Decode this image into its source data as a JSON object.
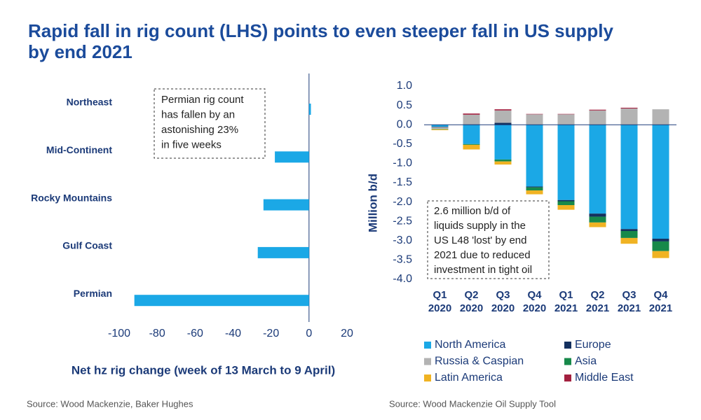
{
  "title": [
    "Rapid fall in rig count (LHS) points to even steeper fall in US supply",
    "by end 2021"
  ],
  "chart_data": [
    {
      "type": "hbar",
      "x_label": "Net hz rig change (week of 13 March to 9 April)",
      "categories": [
        "Northeast",
        "Mid-Continent",
        "Rocky Mountains",
        "Gulf Coast",
        "Permian"
      ],
      "values": [
        1,
        -18,
        -24,
        -27,
        -92
      ],
      "color": "#1ba8e6",
      "xlim": [
        -100,
        20
      ],
      "xticks": [
        -100,
        -80,
        -60,
        -40,
        -20,
        0,
        20
      ],
      "annotation": [
        "Permian rig count",
        "has fallen by an",
        "astonishing 23%",
        "in five weeks"
      ],
      "source": "Source: Wood Mackenzie, Baker Hughes"
    },
    {
      "type": "stacked_bar",
      "y_label": "Million b/d",
      "categories": [
        "Q1 2020",
        "Q2 2020",
        "Q3 2020",
        "Q4 2020",
        "Q1 2021",
        "Q2 2021",
        "Q3 2021",
        "Q4 2021"
      ],
      "series": [
        {
          "name": "North America",
          "color": "#1ba8e6",
          "values": [
            -0.05,
            -0.5,
            -0.9,
            -1.6,
            -1.95,
            -2.3,
            -2.7,
            -2.95
          ]
        },
        {
          "name": "Europe",
          "color": "#13305f",
          "values": [
            -0.01,
            0.01,
            0.05,
            -0.02,
            -0.03,
            -0.08,
            -0.05,
            -0.07
          ]
        },
        {
          "name": "Russia & Caspian",
          "color": "#b3b3b3",
          "values": [
            -0.05,
            0.25,
            0.32,
            0.27,
            0.27,
            0.37,
            0.42,
            0.4
          ]
        },
        {
          "name": "Asia",
          "color": "#17894a",
          "values": [
            -0.01,
            -0.02,
            -0.05,
            -0.08,
            -0.1,
            -0.15,
            -0.18,
            -0.25
          ]
        },
        {
          "name": "Latin America",
          "color": "#f0b323",
          "values": [
            -0.02,
            -0.12,
            -0.08,
            -0.1,
            -0.12,
            -0.12,
            -0.15,
            -0.18
          ]
        },
        {
          "name": "Middle East",
          "color": "#a3203f",
          "values": [
            0,
            0.03,
            0.03,
            0.01,
            0.01,
            0.02,
            0.02,
            0
          ]
        }
      ],
      "ylim": [
        -4,
        1
      ],
      "yticks": [
        {
          "value": 1,
          "label": "1.0"
        },
        0.5,
        {
          "value": 0,
          "label": "0.0"
        },
        -0.5,
        {
          "value": -1,
          "label": "-1.0"
        },
        -1.5,
        {
          "value": -2,
          "label": "-2.0"
        },
        -2.5,
        {
          "value": -3,
          "label": "-3.0"
        },
        -3.5,
        {
          "value": -4,
          "label": "-4.0"
        }
      ],
      "annotation": [
        "2.6 million b/d of",
        "liquids supply in the",
        "US L48 'lost' by end",
        "2021 due to reduced",
        "investment in tight oil"
      ],
      "source": "Source: Wood Mackenzie Oil Supply Tool"
    }
  ]
}
